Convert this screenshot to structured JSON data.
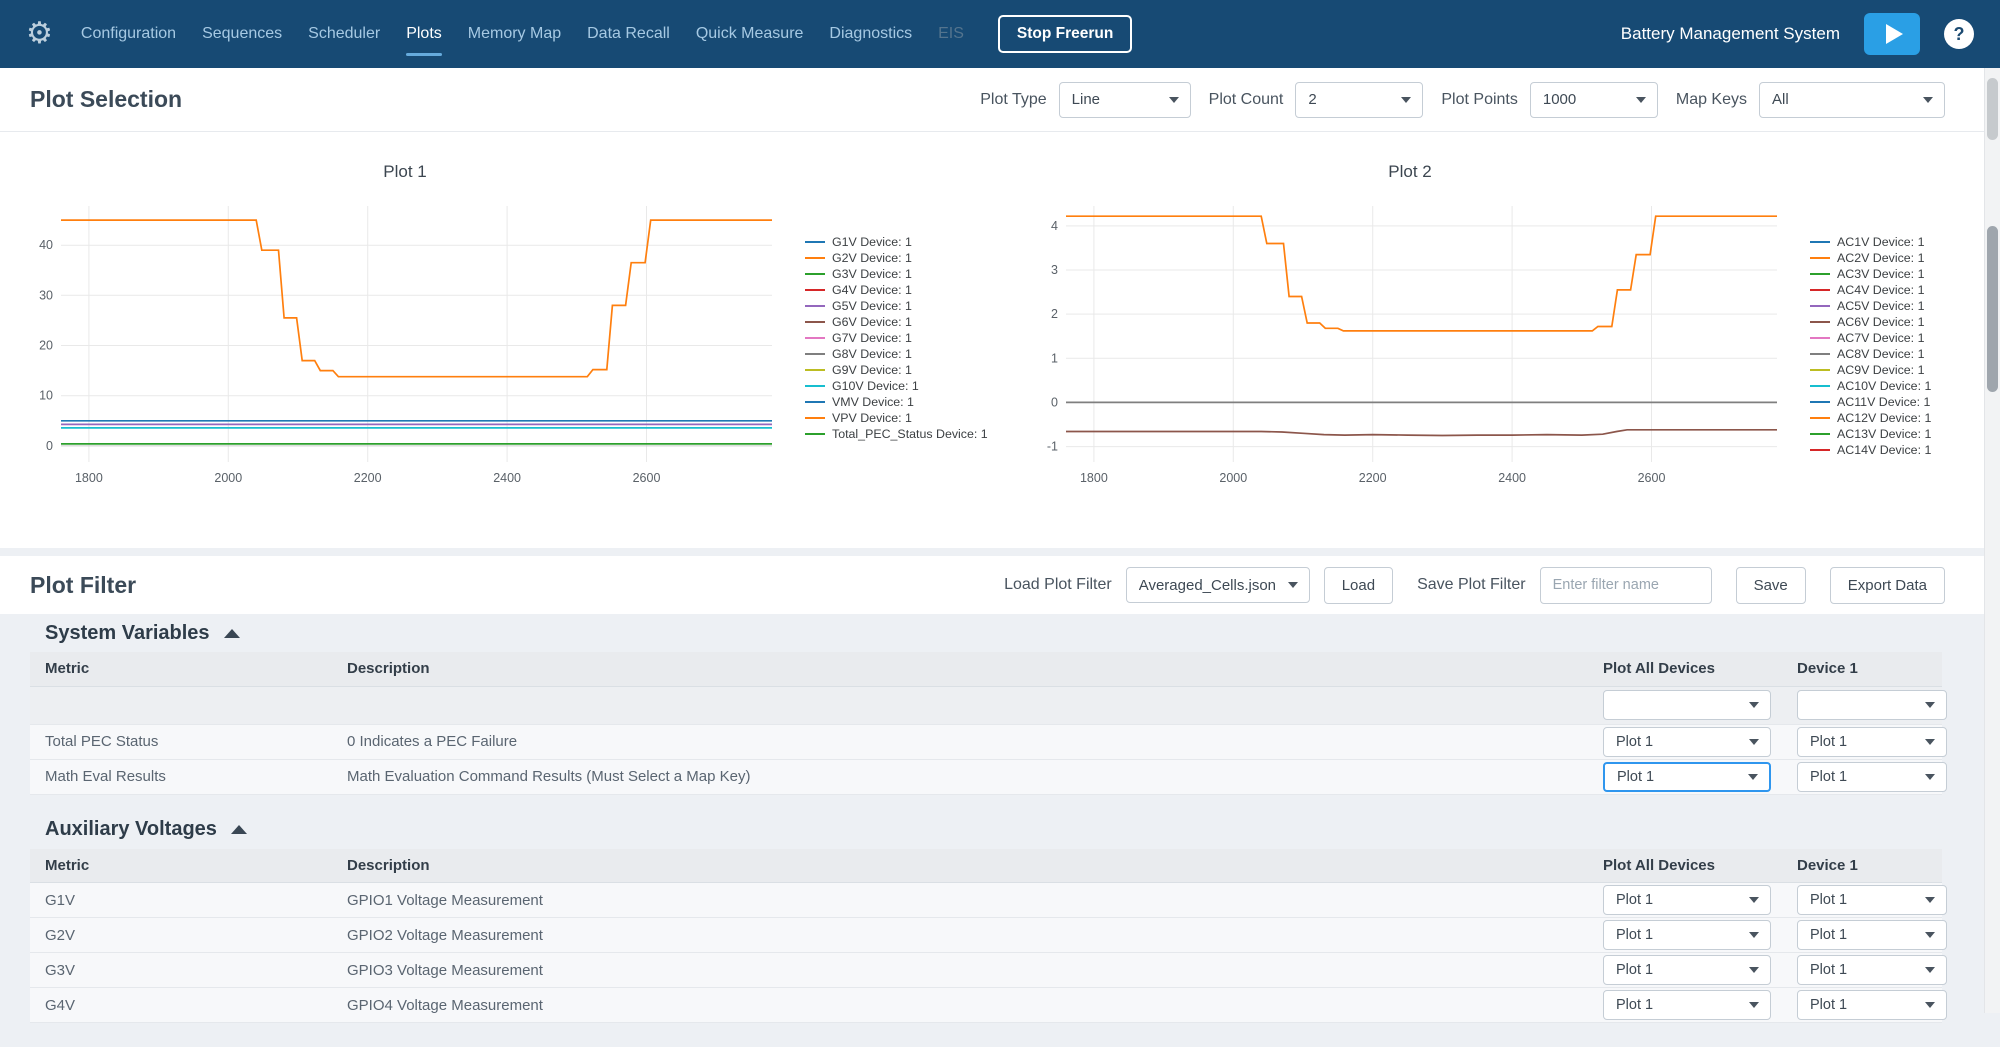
{
  "nav": {
    "items": [
      {
        "label": "Configuration",
        "active": false,
        "disabled": false
      },
      {
        "label": "Sequences",
        "active": false,
        "disabled": false
      },
      {
        "label": "Scheduler",
        "active": false,
        "disabled": false
      },
      {
        "label": "Plots",
        "active": true,
        "disabled": false
      },
      {
        "label": "Memory Map",
        "active": false,
        "disabled": false
      },
      {
        "label": "Data Recall",
        "active": false,
        "disabled": false
      },
      {
        "label": "Quick Measure",
        "active": false,
        "disabled": false
      },
      {
        "label": "Diagnostics",
        "active": false,
        "disabled": false
      },
      {
        "label": "EIS",
        "active": false,
        "disabled": true
      }
    ],
    "stop_button": "Stop Freerun",
    "app_title": "Battery Management System",
    "help_label": "?"
  },
  "plot_selection": {
    "title": "Plot Selection",
    "controls": [
      {
        "label": "Plot Type",
        "value": "Line"
      },
      {
        "label": "Plot Count",
        "value": "2"
      },
      {
        "label": "Plot Points",
        "value": "1000"
      },
      {
        "label": "Map Keys",
        "value": "All"
      }
    ]
  },
  "chart_data": [
    {
      "type": "line",
      "title": "Plot 1",
      "xlabel": "",
      "ylabel": "",
      "xlim": [
        1760,
        2780
      ],
      "ylim": [
        -3.2,
        47.8
      ],
      "xticks": [
        1800,
        2000,
        2200,
        2400,
        2600
      ],
      "yticks": [
        0,
        10,
        20,
        30,
        40
      ],
      "grid": true,
      "legend_position": "right",
      "legend": [
        {
          "label": "G1V Device: 1",
          "color": "#1f77b4"
        },
        {
          "label": "G2V Device: 1",
          "color": "#ff7f0e"
        },
        {
          "label": "G3V Device: 1",
          "color": "#2ca02c"
        },
        {
          "label": "G4V Device: 1",
          "color": "#d62728"
        },
        {
          "label": "G5V Device: 1",
          "color": "#9467bd"
        },
        {
          "label": "G6V Device: 1",
          "color": "#8c564b"
        },
        {
          "label": "G7V Device: 1",
          "color": "#e377c2"
        },
        {
          "label": "G8V Device: 1",
          "color": "#7f7f7f"
        },
        {
          "label": "G9V Device: 1",
          "color": "#bcbd22"
        },
        {
          "label": "G10V Device: 1",
          "color": "#17becf"
        },
        {
          "label": "VMV Device: 1",
          "color": "#1f77b4"
        },
        {
          "label": "VPV Device: 1",
          "color": "#ff7f0e"
        },
        {
          "label": "Total_PEC_Status Device: 1",
          "color": "#2ca02c"
        }
      ],
      "series": [
        {
          "name": "G1V Device: 1",
          "color": "#1f77b4",
          "x": [
            1760,
            2780
          ],
          "y": [
            5.0,
            5.0
          ]
        },
        {
          "name": "G5V Device: 1",
          "color": "#9467bd",
          "x": [
            1760,
            2780
          ],
          "y": [
            4.3,
            4.3
          ]
        },
        {
          "name": "G10V Device: 1",
          "color": "#17becf",
          "x": [
            1760,
            2780
          ],
          "y": [
            3.6,
            3.6
          ]
        },
        {
          "name": "Total_PEC_Status Device: 1",
          "color": "#2ca02c",
          "x": [
            1760,
            2780
          ],
          "y": [
            0.4,
            0.4
          ]
        },
        {
          "name": "VPV Device: 1",
          "color": "#ff7f0e",
          "x": [
            1760,
            2040,
            2048,
            2072,
            2080,
            2098,
            2106,
            2124,
            2132,
            2150,
            2158,
            2515,
            2523,
            2543,
            2551,
            2570,
            2578,
            2598,
            2606,
            2780
          ],
          "y": [
            45,
            45,
            39,
            39,
            25.5,
            25.5,
            17,
            17,
            15,
            15,
            13.8,
            13.8,
            15.2,
            15.2,
            28,
            28,
            36.5,
            36.5,
            45,
            45
          ]
        }
      ]
    },
    {
      "type": "line",
      "title": "Plot 2",
      "xlabel": "",
      "ylabel": "",
      "xlim": [
        1760,
        2780
      ],
      "ylim": [
        -1.35,
        4.45
      ],
      "xticks": [
        1800,
        2000,
        2200,
        2400,
        2600
      ],
      "yticks": [
        -1,
        0,
        1,
        2,
        3,
        4
      ],
      "grid": true,
      "legend_position": "right",
      "legend": [
        {
          "label": "AC1V Device: 1",
          "color": "#1f77b4"
        },
        {
          "label": "AC2V Device: 1",
          "color": "#ff7f0e"
        },
        {
          "label": "AC3V Device: 1",
          "color": "#2ca02c"
        },
        {
          "label": "AC4V Device: 1",
          "color": "#d62728"
        },
        {
          "label": "AC5V Device: 1",
          "color": "#9467bd"
        },
        {
          "label": "AC6V Device: 1",
          "color": "#8c564b"
        },
        {
          "label": "AC7V Device: 1",
          "color": "#e377c2"
        },
        {
          "label": "AC8V Device: 1",
          "color": "#7f7f7f"
        },
        {
          "label": "AC9V Device: 1",
          "color": "#bcbd22"
        },
        {
          "label": "AC10V Device: 1",
          "color": "#17becf"
        },
        {
          "label": "AC11V Device: 1",
          "color": "#1f77b4"
        },
        {
          "label": "AC12V Device: 1",
          "color": "#ff7f0e"
        },
        {
          "label": "AC13V Device: 1",
          "color": "#2ca02c"
        },
        {
          "label": "AC14V Device: 1",
          "color": "#d62728"
        }
      ],
      "series": [
        {
          "name": "AC8V Device: 1",
          "color": "#7f7f7f",
          "x": [
            1760,
            2780
          ],
          "y": [
            0.0,
            0.0
          ]
        },
        {
          "name": "AC6V Device: 1",
          "color": "#8c564b",
          "x": [
            1760,
            2040,
            2070,
            2100,
            2130,
            2160,
            2200,
            2250,
            2300,
            2350,
            2400,
            2450,
            2500,
            2530,
            2550,
            2565,
            2780
          ],
          "y": [
            -0.66,
            -0.66,
            -0.67,
            -0.7,
            -0.73,
            -0.74,
            -0.73,
            -0.74,
            -0.75,
            -0.74,
            -0.74,
            -0.73,
            -0.74,
            -0.72,
            -0.66,
            -0.62,
            -0.62
          ]
        },
        {
          "name": "AC12V Device: 1",
          "color": "#ff7f0e",
          "x": [
            1760,
            2040,
            2048,
            2072,
            2080,
            2098,
            2106,
            2124,
            2132,
            2150,
            2158,
            2515,
            2523,
            2543,
            2551,
            2570,
            2578,
            2598,
            2606,
            2780
          ],
          "y": [
            4.22,
            4.22,
            3.6,
            3.6,
            2.4,
            2.4,
            1.8,
            1.8,
            1.68,
            1.68,
            1.62,
            1.62,
            1.72,
            1.72,
            2.55,
            2.55,
            3.35,
            3.35,
            4.22,
            4.22
          ]
        }
      ]
    }
  ],
  "plot_filter": {
    "title": "Plot Filter",
    "load_label": "Load Plot Filter",
    "load_value": "Averaged_Cells.json",
    "load_button": "Load",
    "save_label": "Save Plot Filter",
    "save_placeholder": "Enter filter name",
    "save_button": "Save",
    "export_button": "Export Data"
  },
  "sections": [
    {
      "title": "System Variables",
      "columns": [
        "Metric",
        "Description",
        "Plot All Devices",
        "Device 1"
      ],
      "has_filter_row": true,
      "rows": [
        {
          "metric": "Total PEC Status",
          "description": "0 Indicates a PEC Failure",
          "plot_all": "Plot 1",
          "device1": "Plot 1",
          "focused": ""
        },
        {
          "metric": "Math Eval Results",
          "description": "Math Evaluation Command Results (Must Select a Map Key)",
          "plot_all": "Plot 1",
          "device1": "Plot 1",
          "focused": "plot_all"
        }
      ]
    },
    {
      "title": "Auxiliary Voltages",
      "columns": [
        "Metric",
        "Description",
        "Plot All Devices",
        "Device 1"
      ],
      "has_filter_row": false,
      "rows": [
        {
          "metric": "G1V",
          "description": "GPIO1 Voltage Measurement",
          "plot_all": "Plot 1",
          "device1": "Plot 1",
          "focused": ""
        },
        {
          "metric": "G2V",
          "description": "GPIO2 Voltage Measurement",
          "plot_all": "Plot 1",
          "device1": "Plot 1",
          "focused": ""
        },
        {
          "metric": "G3V",
          "description": "GPIO3 Voltage Measurement",
          "plot_all": "Plot 1",
          "device1": "Plot 1",
          "focused": ""
        },
        {
          "metric": "G4V",
          "description": "GPIO4 Voltage Measurement",
          "plot_all": "Plot 1",
          "device1": "Plot 1",
          "focused": ""
        }
      ]
    }
  ]
}
